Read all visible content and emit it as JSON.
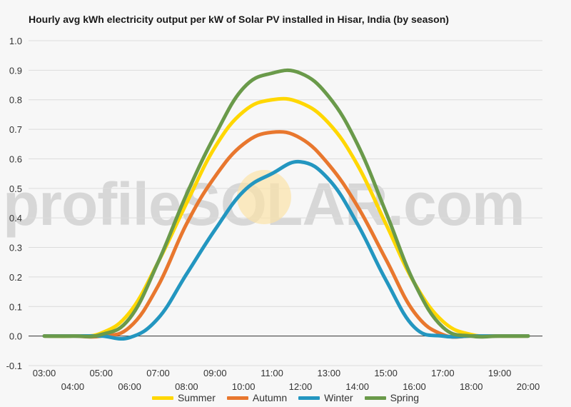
{
  "chart_data": {
    "type": "line",
    "title": "Hourly avg kWh electricity output per kW of Solar PV installed in Hisar, India (by season)",
    "xlabel": "",
    "ylabel": "",
    "ylim": [
      -0.1,
      1.0
    ],
    "yticks": [
      "-0.1",
      "0.0",
      "0.1",
      "0.2",
      "0.3",
      "0.4",
      "0.5",
      "0.6",
      "0.7",
      "0.8",
      "0.9",
      "1.0"
    ],
    "x": [
      "03:00",
      "04:00",
      "05:00",
      "06:00",
      "07:00",
      "08:00",
      "09:00",
      "10:00",
      "11:00",
      "12:00",
      "13:00",
      "14:00",
      "15:00",
      "16:00",
      "17:00",
      "18:00",
      "19:00",
      "20:00"
    ],
    "grid": true,
    "legend_position": "bottom",
    "series": [
      {
        "name": "Summer",
        "color": "#ffd700",
        "values": [
          0.0,
          0.0,
          0.01,
          0.08,
          0.25,
          0.45,
          0.64,
          0.76,
          0.8,
          0.79,
          0.72,
          0.58,
          0.38,
          0.18,
          0.05,
          0.005,
          0.0,
          0.0
        ]
      },
      {
        "name": "Autumn",
        "color": "#e8772e",
        "values": [
          0.0,
          0.0,
          0.0,
          0.03,
          0.17,
          0.38,
          0.54,
          0.65,
          0.69,
          0.67,
          0.58,
          0.44,
          0.26,
          0.08,
          0.005,
          0.0,
          0.0,
          0.0
        ]
      },
      {
        "name": "Winter",
        "color": "#2396c0",
        "values": [
          0.0,
          0.0,
          0.0,
          -0.005,
          0.06,
          0.21,
          0.36,
          0.49,
          0.55,
          0.59,
          0.53,
          0.38,
          0.19,
          0.03,
          0.0,
          0.0,
          0.0,
          0.0
        ]
      },
      {
        "name": "Spring",
        "color": "#6a9a4a",
        "values": [
          0.0,
          0.0,
          0.005,
          0.06,
          0.25,
          0.48,
          0.68,
          0.84,
          0.89,
          0.89,
          0.81,
          0.65,
          0.42,
          0.18,
          0.03,
          0.0,
          0.0,
          0.0
        ]
      }
    ]
  },
  "watermark": "profileSOLAR.com"
}
